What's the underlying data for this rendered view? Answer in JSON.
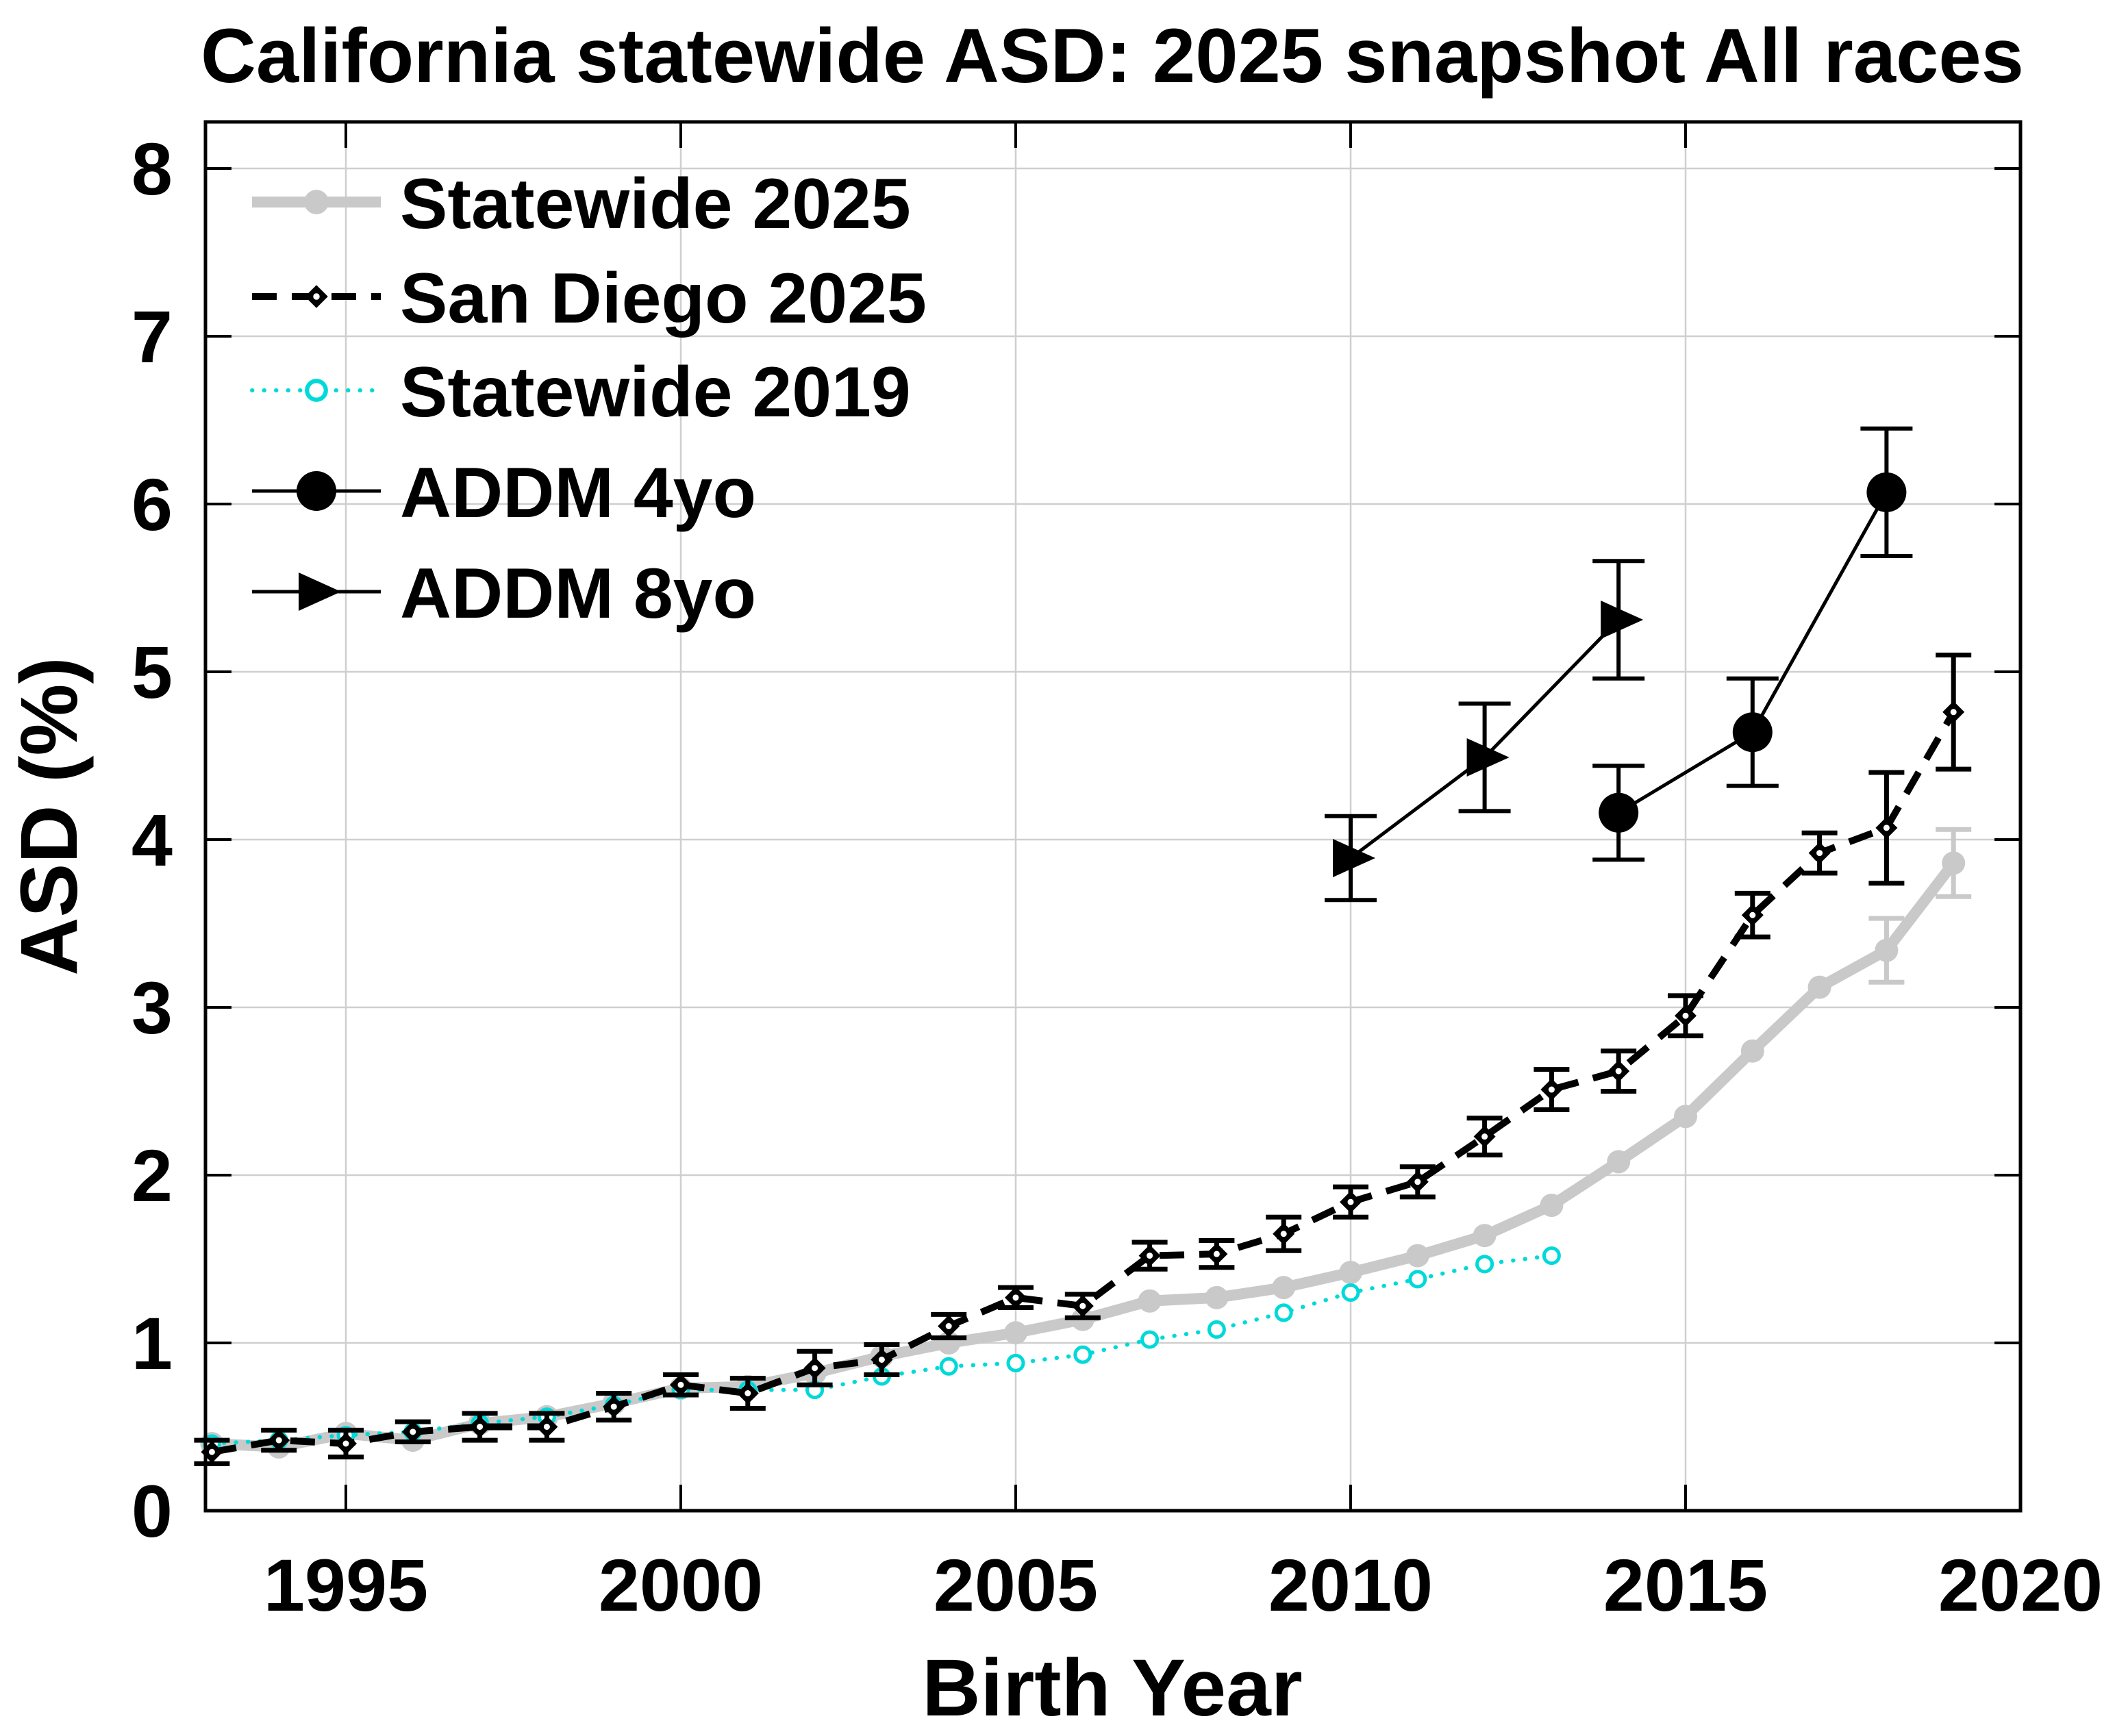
{
  "page": {
    "background_color": "#ffffff"
  },
  "chart_data": {
    "type": "line",
    "title": "California statewide ASD: 2025 snapshot All races",
    "xlabel": "Birth Year",
    "ylabel": "ASD (%)",
    "xlim": [
      1992.8,
      2020.1
    ],
    "ylim": [
      0,
      8.3
    ],
    "xticks": [
      1995,
      2000,
      2005,
      2010,
      2015,
      2020
    ],
    "yticks": [
      0,
      1,
      2,
      3,
      4,
      5,
      6,
      7,
      8
    ],
    "grid": true,
    "legend_position": "top-left-inside",
    "gridline_color": "#cfcfcf",
    "series": [
      {
        "name": "Statewide 2025",
        "color": "#c9c9c9",
        "line": "thick-solid",
        "marker": "filled-circle-small",
        "x": [
          1993,
          1994,
          1995,
          1996,
          1997,
          1998,
          1999,
          2000,
          2001,
          2002,
          2003,
          2004,
          2005,
          2006,
          2007,
          2008,
          2009,
          2010,
          2011,
          2012,
          2013,
          2014,
          2015,
          2016,
          2017,
          2018,
          2019
        ],
        "y": [
          0.4,
          0.38,
          0.46,
          0.42,
          0.52,
          0.56,
          0.64,
          0.73,
          0.74,
          0.82,
          0.92,
          1.0,
          1.06,
          1.14,
          1.25,
          1.27,
          1.33,
          1.42,
          1.52,
          1.64,
          1.82,
          2.08,
          2.35,
          2.74,
          3.12,
          3.34,
          3.86
        ],
        "err": [
          null,
          null,
          null,
          null,
          null,
          null,
          null,
          null,
          null,
          null,
          null,
          null,
          null,
          null,
          null,
          null,
          null,
          null,
          null,
          null,
          null,
          null,
          null,
          null,
          null,
          0.19,
          0.2
        ]
      },
      {
        "name": "San Diego 2025",
        "color": "#000000",
        "line": "dashed",
        "marker": "filled-diamond",
        "x": [
          1993,
          1994,
          1995,
          1996,
          1997,
          1998,
          1999,
          2000,
          2001,
          2002,
          2003,
          2004,
          2005,
          2006,
          2007,
          2008,
          2009,
          2010,
          2011,
          2012,
          2013,
          2014,
          2015,
          2016,
          2017,
          2018,
          2019
        ],
        "y": [
          0.35,
          0.42,
          0.4,
          0.47,
          0.5,
          0.5,
          0.62,
          0.75,
          0.7,
          0.85,
          0.9,
          1.1,
          1.27,
          1.22,
          1.52,
          1.53,
          1.65,
          1.84,
          1.96,
          2.23,
          2.51,
          2.62,
          2.95,
          3.55,
          3.92,
          4.07,
          4.76
        ],
        "err": [
          0.07,
          0.06,
          0.08,
          0.06,
          0.08,
          0.08,
          0.08,
          0.06,
          0.09,
          0.1,
          0.09,
          0.07,
          0.06,
          0.07,
          0.08,
          0.08,
          0.1,
          0.09,
          0.09,
          0.11,
          0.12,
          0.12,
          0.12,
          0.13,
          0.12,
          0.33,
          0.34
        ]
      },
      {
        "name": "Statewide 2019",
        "color": "#00d9d9",
        "line": "dotted",
        "marker": "open-circle",
        "x": [
          1993,
          1994,
          1995,
          1996,
          1997,
          1998,
          1999,
          2000,
          2001,
          2002,
          2003,
          2004,
          2005,
          2006,
          2007,
          2008,
          2009,
          2010,
          2011,
          2012,
          2013
        ],
        "y": [
          0.4,
          0.42,
          0.45,
          0.47,
          0.52,
          0.56,
          0.63,
          0.72,
          0.72,
          0.72,
          0.8,
          0.86,
          0.88,
          0.93,
          1.02,
          1.08,
          1.18,
          1.3,
          1.38,
          1.47,
          1.52
        ],
        "err": [
          null,
          null,
          null,
          null,
          null,
          null,
          null,
          null,
          null,
          null,
          null,
          null,
          null,
          null,
          null,
          null,
          null,
          null,
          null,
          null,
          null
        ]
      },
      {
        "name": "ADDM 4yo",
        "color": "#000000",
        "line": "thin-solid",
        "marker": "filled-circle-large",
        "x": [
          2014,
          2016,
          2018
        ],
        "y": [
          4.16,
          4.64,
          6.07
        ],
        "err": [
          0.28,
          0.32,
          0.38
        ]
      },
      {
        "name": "ADDM 8yo",
        "color": "#000000",
        "line": "thin-solid",
        "marker": "filled-triangle-right",
        "x": [
          2010,
          2012,
          2014
        ],
        "y": [
          3.89,
          4.49,
          5.31
        ],
        "err": [
          0.25,
          0.32,
          0.35
        ]
      }
    ]
  }
}
